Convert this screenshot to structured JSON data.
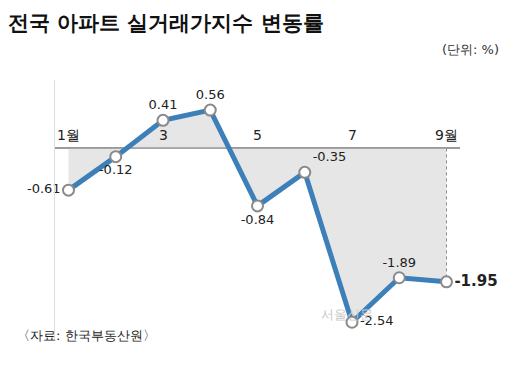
{
  "chart_data": {
    "type": "line",
    "title": "전국 아파트 실거래가지수 변동률",
    "unit": "(단위: %)",
    "source": "〈자료: 한국부동산원〉",
    "watermark": "서울신문",
    "categories": [
      "1월",
      null,
      "3",
      null,
      "5",
      null,
      "7",
      null,
      "9월"
    ],
    "values": [
      -0.61,
      -0.12,
      0.41,
      0.56,
      -0.84,
      -0.35,
      -2.54,
      -1.89,
      -1.95
    ],
    "color": "#3d7fb8",
    "ylim": [
      -2.8,
      1.0
    ],
    "yticks": [],
    "grid": false,
    "tick_labels": "x",
    "data_labels": true,
    "marker": "circle"
  }
}
